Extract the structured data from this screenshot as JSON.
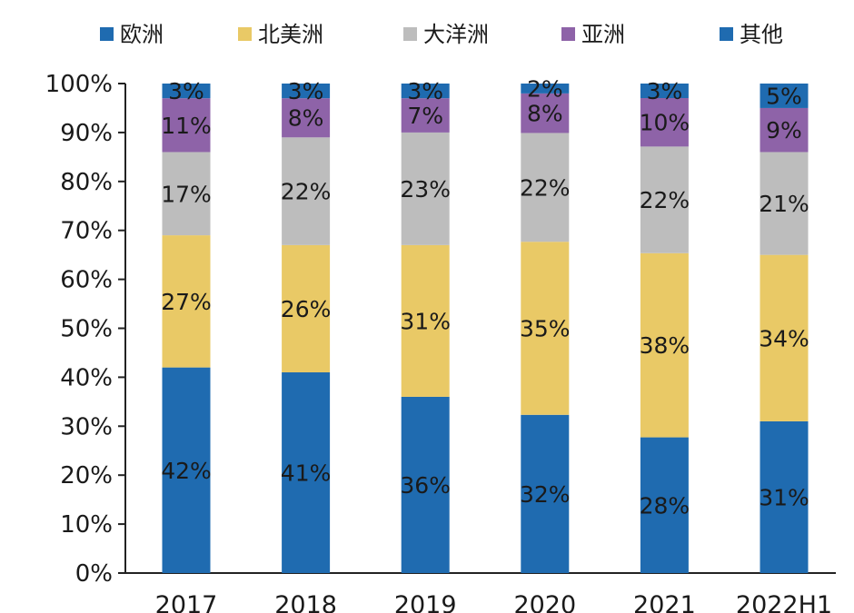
{
  "chart_data": {
    "type": "bar",
    "stacked": true,
    "categories": [
      "2017",
      "2018",
      "2019",
      "2020",
      "2021",
      "2022H1"
    ],
    "series": [
      {
        "name": "欧洲",
        "color": "#1F6BB0",
        "values": [
          42,
          41,
          36,
          32,
          28,
          31
        ]
      },
      {
        "name": "北美洲",
        "color": "#E9C966",
        "values": [
          27,
          26,
          31,
          35,
          38,
          34
        ]
      },
      {
        "name": "大洋洲",
        "color": "#BDBDBD",
        "values": [
          17,
          22,
          23,
          22,
          22,
          21
        ]
      },
      {
        "name": "亚洲",
        "color": "#8E63A8",
        "values": [
          11,
          8,
          7,
          8,
          10,
          9
        ]
      },
      {
        "name": "其他",
        "color": "#1F6BB0",
        "values": [
          3,
          3,
          3,
          2,
          3,
          5
        ]
      }
    ],
    "value_suffix": "%",
    "y_ticks": [
      "0%",
      "10%",
      "20%",
      "30%",
      "40%",
      "50%",
      "60%",
      "70%",
      "80%",
      "90%",
      "100%"
    ],
    "ylim": [
      0,
      100
    ],
    "legend_position": "top",
    "grid": false
  }
}
